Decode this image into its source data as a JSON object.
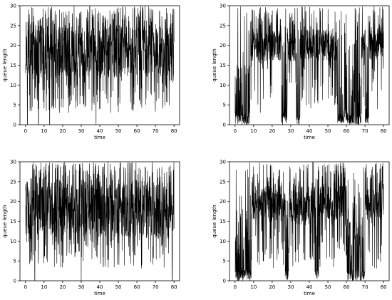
{
  "chart_data": [
    {
      "type": "line",
      "panel": "top-left",
      "xlabel": "time",
      "ylabel": "queue length",
      "xlim": [
        -3,
        83
      ],
      "ylim": [
        0,
        30
      ],
      "xticks": [
        "0",
        "10",
        "20",
        "30",
        "40",
        "50",
        "60",
        "70",
        "80"
      ],
      "yticks": [
        "0",
        "5",
        "10",
        "15",
        "20",
        "25",
        "30"
      ],
      "grid": false,
      "legend": "none",
      "line_color": "#000000",
      "pattern": {
        "x_start": 0,
        "x_end": 80,
        "step": 0.08,
        "typical_low": 12,
        "typical_high": 25,
        "mean": 18,
        "min": 0,
        "max": 30,
        "dips_to_zero_at": [
          1,
          7,
          13,
          38
        ]
      }
    },
    {
      "type": "line",
      "panel": "top-right",
      "xlabel": "time",
      "ylabel": "queue length",
      "xlim": [
        -3,
        83
      ],
      "ylim": [
        0,
        30
      ],
      "xticks": [
        "0",
        "10",
        "20",
        "30",
        "40",
        "50",
        "60",
        "70",
        "80"
      ],
      "yticks": [
        "0",
        "5",
        "10",
        "15",
        "20",
        "25",
        "30"
      ],
      "grid": false,
      "legend": "none",
      "line_color": "#000000",
      "pattern": {
        "x_start": 0,
        "x_end": 80,
        "step": 0.08,
        "typical_low": 16,
        "typical_high": 24,
        "mean": 20,
        "min": 0,
        "max": 30,
        "empty_intervals": [
          [
            0,
            8
          ],
          [
            25,
            28
          ],
          [
            33,
            35
          ],
          [
            55,
            68
          ],
          [
            70,
            72
          ]
        ]
      }
    },
    {
      "type": "line",
      "panel": "bottom-left",
      "xlabel": "time",
      "ylabel": "queue length",
      "xlim": [
        -3,
        83
      ],
      "ylim": [
        0,
        30
      ],
      "xticks": [
        "0",
        "10",
        "20",
        "30",
        "40",
        "50",
        "60",
        "70",
        "80"
      ],
      "yticks": [
        "0",
        "5",
        "10",
        "15",
        "20",
        "25",
        "30"
      ],
      "grid": false,
      "legend": "none",
      "line_color": "#000000",
      "pattern": {
        "x_start": 0,
        "x_end": 80,
        "step": 0.08,
        "typical_low": 11,
        "typical_high": 25,
        "mean": 18,
        "min": 0,
        "max": 30,
        "dips_to_zero_at": [
          5,
          30,
          79
        ]
      }
    },
    {
      "type": "line",
      "panel": "bottom-right",
      "xlabel": "time",
      "ylabel": "queue length",
      "xlim": [
        -3,
        83
      ],
      "ylim": [
        0,
        30
      ],
      "xticks": [
        "0",
        "10",
        "20",
        "30",
        "40",
        "50",
        "60",
        "70",
        "80"
      ],
      "yticks": [
        "0",
        "5",
        "10",
        "15",
        "20",
        "25",
        "30"
      ],
      "grid": false,
      "legend": "none",
      "line_color": "#000000",
      "pattern": {
        "x_start": 0,
        "x_end": 80,
        "step": 0.08,
        "typical_low": 15,
        "typical_high": 24,
        "mean": 19,
        "min": 0,
        "max": 30,
        "empty_intervals": [
          [
            0,
            9
          ],
          [
            27,
            29
          ],
          [
            43,
            45
          ],
          [
            60,
            70
          ]
        ]
      }
    }
  ]
}
